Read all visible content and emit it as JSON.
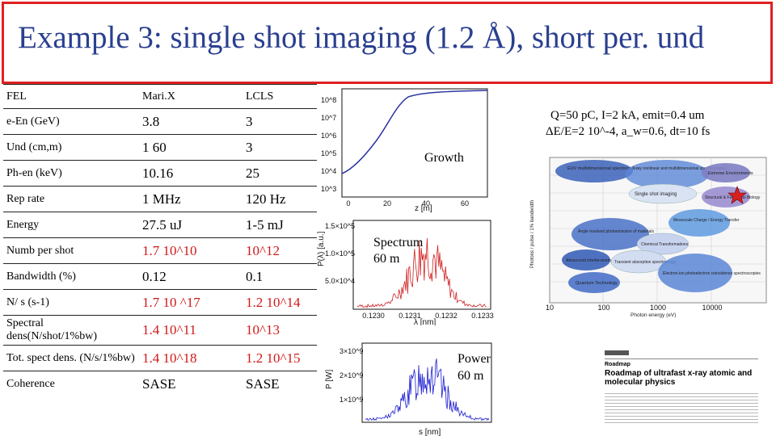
{
  "slide": {
    "title": "Example 3:  single shot imaging (1.2 Å), short per. und"
  },
  "table": {
    "rows": [
      {
        "label": "FEL",
        "marix": "Mari.X",
        "lcls": "LCLS",
        "red": false
      },
      {
        "label": "e-En (GeV)",
        "marix": "3.8",
        "lcls": "3",
        "red": false
      },
      {
        "label": "Und (cm,m)",
        "marix": "1 60",
        "lcls": "3",
        "red": false
      },
      {
        "label": "Ph-en (keV)",
        "marix": "10.16",
        "lcls": "25",
        "red": false
      },
      {
        "label": "Rep rate",
        "marix": "1 MHz",
        "lcls": "120 Hz",
        "red": false
      },
      {
        "label": "Energy",
        "marix": "27.5 uJ",
        "lcls": "1-5 mJ",
        "red": false
      },
      {
        "label": "Numb per shot",
        "marix": "1.7 10^10",
        "lcls": "10^12",
        "red": true
      },
      {
        "label": "Bandwidth (%)",
        "marix": "0.12",
        "lcls": "0.1",
        "red": false
      },
      {
        "label": "N/ s (s-1)",
        "marix": "1.7 10 ^17",
        "lcls": "1.2 10^14",
        "red": true
      },
      {
        "label": "Spectral dens(N/shot/1%bw)",
        "marix": "1.4 10^11",
        "lcls": "10^13",
        "red": true
      },
      {
        "label": "Tot. spect dens. (N/s/1%bw)",
        "marix": "1.4 10^18",
        "lcls": "1.2 10^15",
        "red": true
      },
      {
        "label": "Coherence",
        "marix": "SASE",
        "lcls": "SASE",
        "red": false
      }
    ]
  },
  "params_note": {
    "line1": "Q=50 pC, I=2 kA, emit=0.4 um",
    "line2": "ΔE/E=2 10^-4, a_w=0.6, dt=10 fs"
  },
  "growth_plot": {
    "label": "Growth",
    "xlabel": "z [m]",
    "x_ticks": [
      "0",
      "20",
      "40",
      "60"
    ],
    "y_ticks": [
      "10^8",
      "10^7",
      "10^6",
      "10^5",
      "10^4",
      "10^3"
    ],
    "curve_color": "#2a36a0"
  },
  "spectrum_plot": {
    "label": "Spectrum",
    "label2": "60 m",
    "ylabel": "P(λ) [a.u.]",
    "xlabel": "λ [nm]",
    "y_ticks": [
      "1.5×10^5",
      "1.0×10^5",
      "5.0×10^4"
    ],
    "x_ticks": [
      "0.1230",
      "0.1231",
      "0.1232",
      "0.1233"
    ],
    "curve_color": "#d02020"
  },
  "power_plot": {
    "label": "Power",
    "label2": "60 m",
    "ylabel": "P [W]",
    "xlabel": "s [nm]",
    "y_ticks": [
      "3×10^9",
      "2×10^9",
      "1×10^9"
    ],
    "curve_color": "#1c1cd0"
  },
  "roadmap_figure": {
    "ylabel": "Photons / pulse / 1% bandwidth",
    "xlabel": "Photon energy (eV)",
    "x_ticks": [
      "10",
      "100",
      "1000",
      "10000"
    ],
    "y_ticks": [
      "10^13",
      "10^12",
      "10^11",
      "10^10",
      "10^9",
      "10^8",
      "10^7",
      "10^6"
    ],
    "bubbles": [
      "EUV multidimensional spectroscopy",
      "X-ray nonlinear and multidimensional spectroscopies",
      "Extreme Environments",
      "Single shot imaging",
      "Structural & Functional Biology",
      "Mesoscale Charge / Energy Transfer",
      "Angle resolved photoemission of materials",
      "Chemical Transformations",
      "Attosecond interferometry",
      "Transient absorption spectroscopy",
      "Quantum Technology",
      "Electron-ion photoelectron coincidence spectroscopies"
    ],
    "star_color": "#d82020"
  },
  "paper_thumbnail": {
    "title": "Roadmap of ultrafast x-ray atomic and molecular physics",
    "section": "Roadmap"
  }
}
